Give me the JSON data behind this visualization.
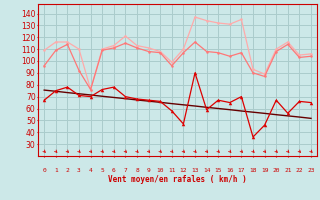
{
  "hours": [
    0,
    1,
    2,
    3,
    4,
    5,
    6,
    7,
    8,
    9,
    10,
    11,
    12,
    13,
    14,
    15,
    16,
    17,
    18,
    19,
    20,
    21,
    22,
    23
  ],
  "rafales": [
    109,
    116,
    116,
    110,
    76,
    110,
    113,
    121,
    113,
    111,
    108,
    99,
    110,
    137,
    134,
    132,
    131,
    135,
    93,
    89,
    110,
    116,
    105,
    106
  ],
  "vent_moyen": [
    96,
    109,
    114,
    92,
    76,
    109,
    111,
    115,
    111,
    108,
    107,
    96,
    107,
    116,
    108,
    107,
    104,
    107,
    90,
    87,
    108,
    114,
    103,
    104
  ],
  "vent_inst": [
    67,
    75,
    78,
    71,
    70,
    76,
    78,
    70,
    68,
    67,
    66,
    58,
    47,
    90,
    59,
    67,
    65,
    70,
    36,
    46,
    67,
    56,
    66,
    65
  ],
  "regression": [
    75.5,
    74.5,
    73.4,
    72.4,
    71.4,
    70.3,
    69.3,
    68.3,
    67.2,
    66.2,
    65.2,
    64.1,
    63.1,
    62.1,
    61.0,
    60.0,
    59.0,
    57.9,
    56.9,
    55.9,
    54.8,
    53.8,
    52.8,
    51.7
  ],
  "bg_color": "#cce8e8",
  "grid_color": "#aacccc",
  "color_rafales": "#ffaaaa",
  "color_vent_moyen": "#ff7777",
  "color_vent_inst": "#dd0000",
  "color_regression": "#660000",
  "xlabel": "Vent moyen/en rafales ( km/h )",
  "ylim_min": 20,
  "ylim_max": 148,
  "yticks": [
    30,
    40,
    50,
    60,
    70,
    80,
    90,
    100,
    110,
    120,
    130,
    140
  ]
}
